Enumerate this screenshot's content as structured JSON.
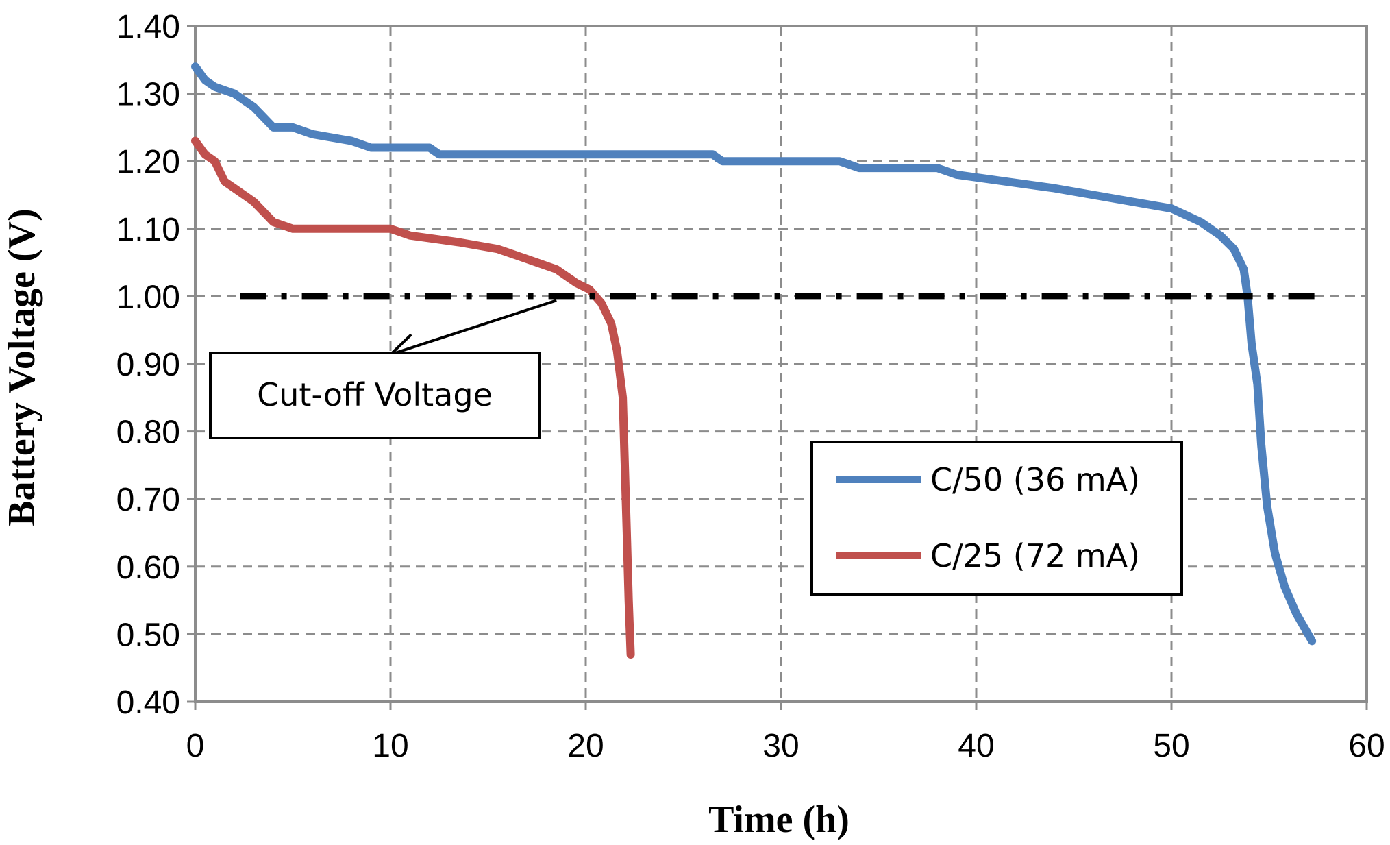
{
  "chart_data": {
    "type": "line",
    "title": "",
    "xlabel": "Time (h)",
    "ylabel": "Battery Voltage (V)",
    "xlim": [
      0,
      60
    ],
    "ylim": [
      0.4,
      1.4
    ],
    "x_ticks": [
      0,
      10,
      20,
      30,
      40,
      50,
      60
    ],
    "x_tick_labels": [
      "0",
      "10",
      "20",
      "30",
      "40",
      "50",
      "60"
    ],
    "y_ticks": [
      0.4,
      0.5,
      0.6,
      0.7,
      0.8,
      0.9,
      1.0,
      1.1,
      1.2,
      1.3,
      1.4
    ],
    "y_tick_labels": [
      "0.40",
      "0.50",
      "0.60",
      "0.70",
      "0.80",
      "0.90",
      "1.00",
      "1.10",
      "1.20",
      "1.30",
      "1.40"
    ],
    "grid": true,
    "legend_position": "right-center",
    "series": [
      {
        "name": "C/50 (36 mA)",
        "color": "#4F81BD",
        "points": [
          [
            0,
            1.34
          ],
          [
            0.5,
            1.32
          ],
          [
            1,
            1.31
          ],
          [
            2,
            1.3
          ],
          [
            3,
            1.28
          ],
          [
            4,
            1.25
          ],
          [
            5,
            1.25
          ],
          [
            6,
            1.24
          ],
          [
            8,
            1.23
          ],
          [
            9,
            1.22
          ],
          [
            12,
            1.22
          ],
          [
            12.5,
            1.21
          ],
          [
            20,
            1.21
          ],
          [
            26.5,
            1.21
          ],
          [
            27,
            1.2
          ],
          [
            33,
            1.2
          ],
          [
            34,
            1.19
          ],
          [
            38,
            1.19
          ],
          [
            39,
            1.18
          ],
          [
            41.5,
            1.17
          ],
          [
            44,
            1.16
          ],
          [
            46,
            1.15
          ],
          [
            48,
            1.14
          ],
          [
            50,
            1.13
          ],
          [
            51.5,
            1.11
          ],
          [
            52.5,
            1.09
          ],
          [
            53.2,
            1.07
          ],
          [
            53.7,
            1.04
          ],
          [
            53.9,
            1.0
          ],
          [
            54.1,
            0.93
          ],
          [
            54.4,
            0.87
          ],
          [
            54.6,
            0.78
          ],
          [
            54.9,
            0.69
          ],
          [
            55.3,
            0.62
          ],
          [
            55.8,
            0.57
          ],
          [
            56.4,
            0.53
          ],
          [
            57.2,
            0.49
          ]
        ]
      },
      {
        "name": "C/25 (72 mA)",
        "color": "#C0504D",
        "points": [
          [
            0,
            1.23
          ],
          [
            0.5,
            1.21
          ],
          [
            1,
            1.2
          ],
          [
            1.5,
            1.17
          ],
          [
            2,
            1.16
          ],
          [
            3,
            1.14
          ],
          [
            4,
            1.11
          ],
          [
            5,
            1.1
          ],
          [
            6,
            1.1
          ],
          [
            10,
            1.1
          ],
          [
            11,
            1.09
          ],
          [
            13.5,
            1.08
          ],
          [
            15.5,
            1.07
          ],
          [
            16.5,
            1.06
          ],
          [
            17.5,
            1.05
          ],
          [
            18.5,
            1.04
          ],
          [
            19.5,
            1.02
          ],
          [
            20.2,
            1.01
          ],
          [
            20.8,
            0.99
          ],
          [
            21.3,
            0.96
          ],
          [
            21.6,
            0.92
          ],
          [
            21.9,
            0.85
          ],
          [
            22.0,
            0.75
          ],
          [
            22.1,
            0.65
          ],
          [
            22.2,
            0.55
          ],
          [
            22.3,
            0.47
          ]
        ]
      },
      {
        "name": "Cut-off",
        "color": "#000000",
        "style": "dash-dot",
        "points": [
          [
            2.3,
            1.0
          ],
          [
            57.5,
            1.0
          ]
        ]
      }
    ],
    "annotations": [
      {
        "text": "Cut-off Voltage",
        "arrow_from": [
          18.5,
          1.0
        ],
        "arrow_to": [
          10,
          0.92
        ]
      }
    ]
  }
}
